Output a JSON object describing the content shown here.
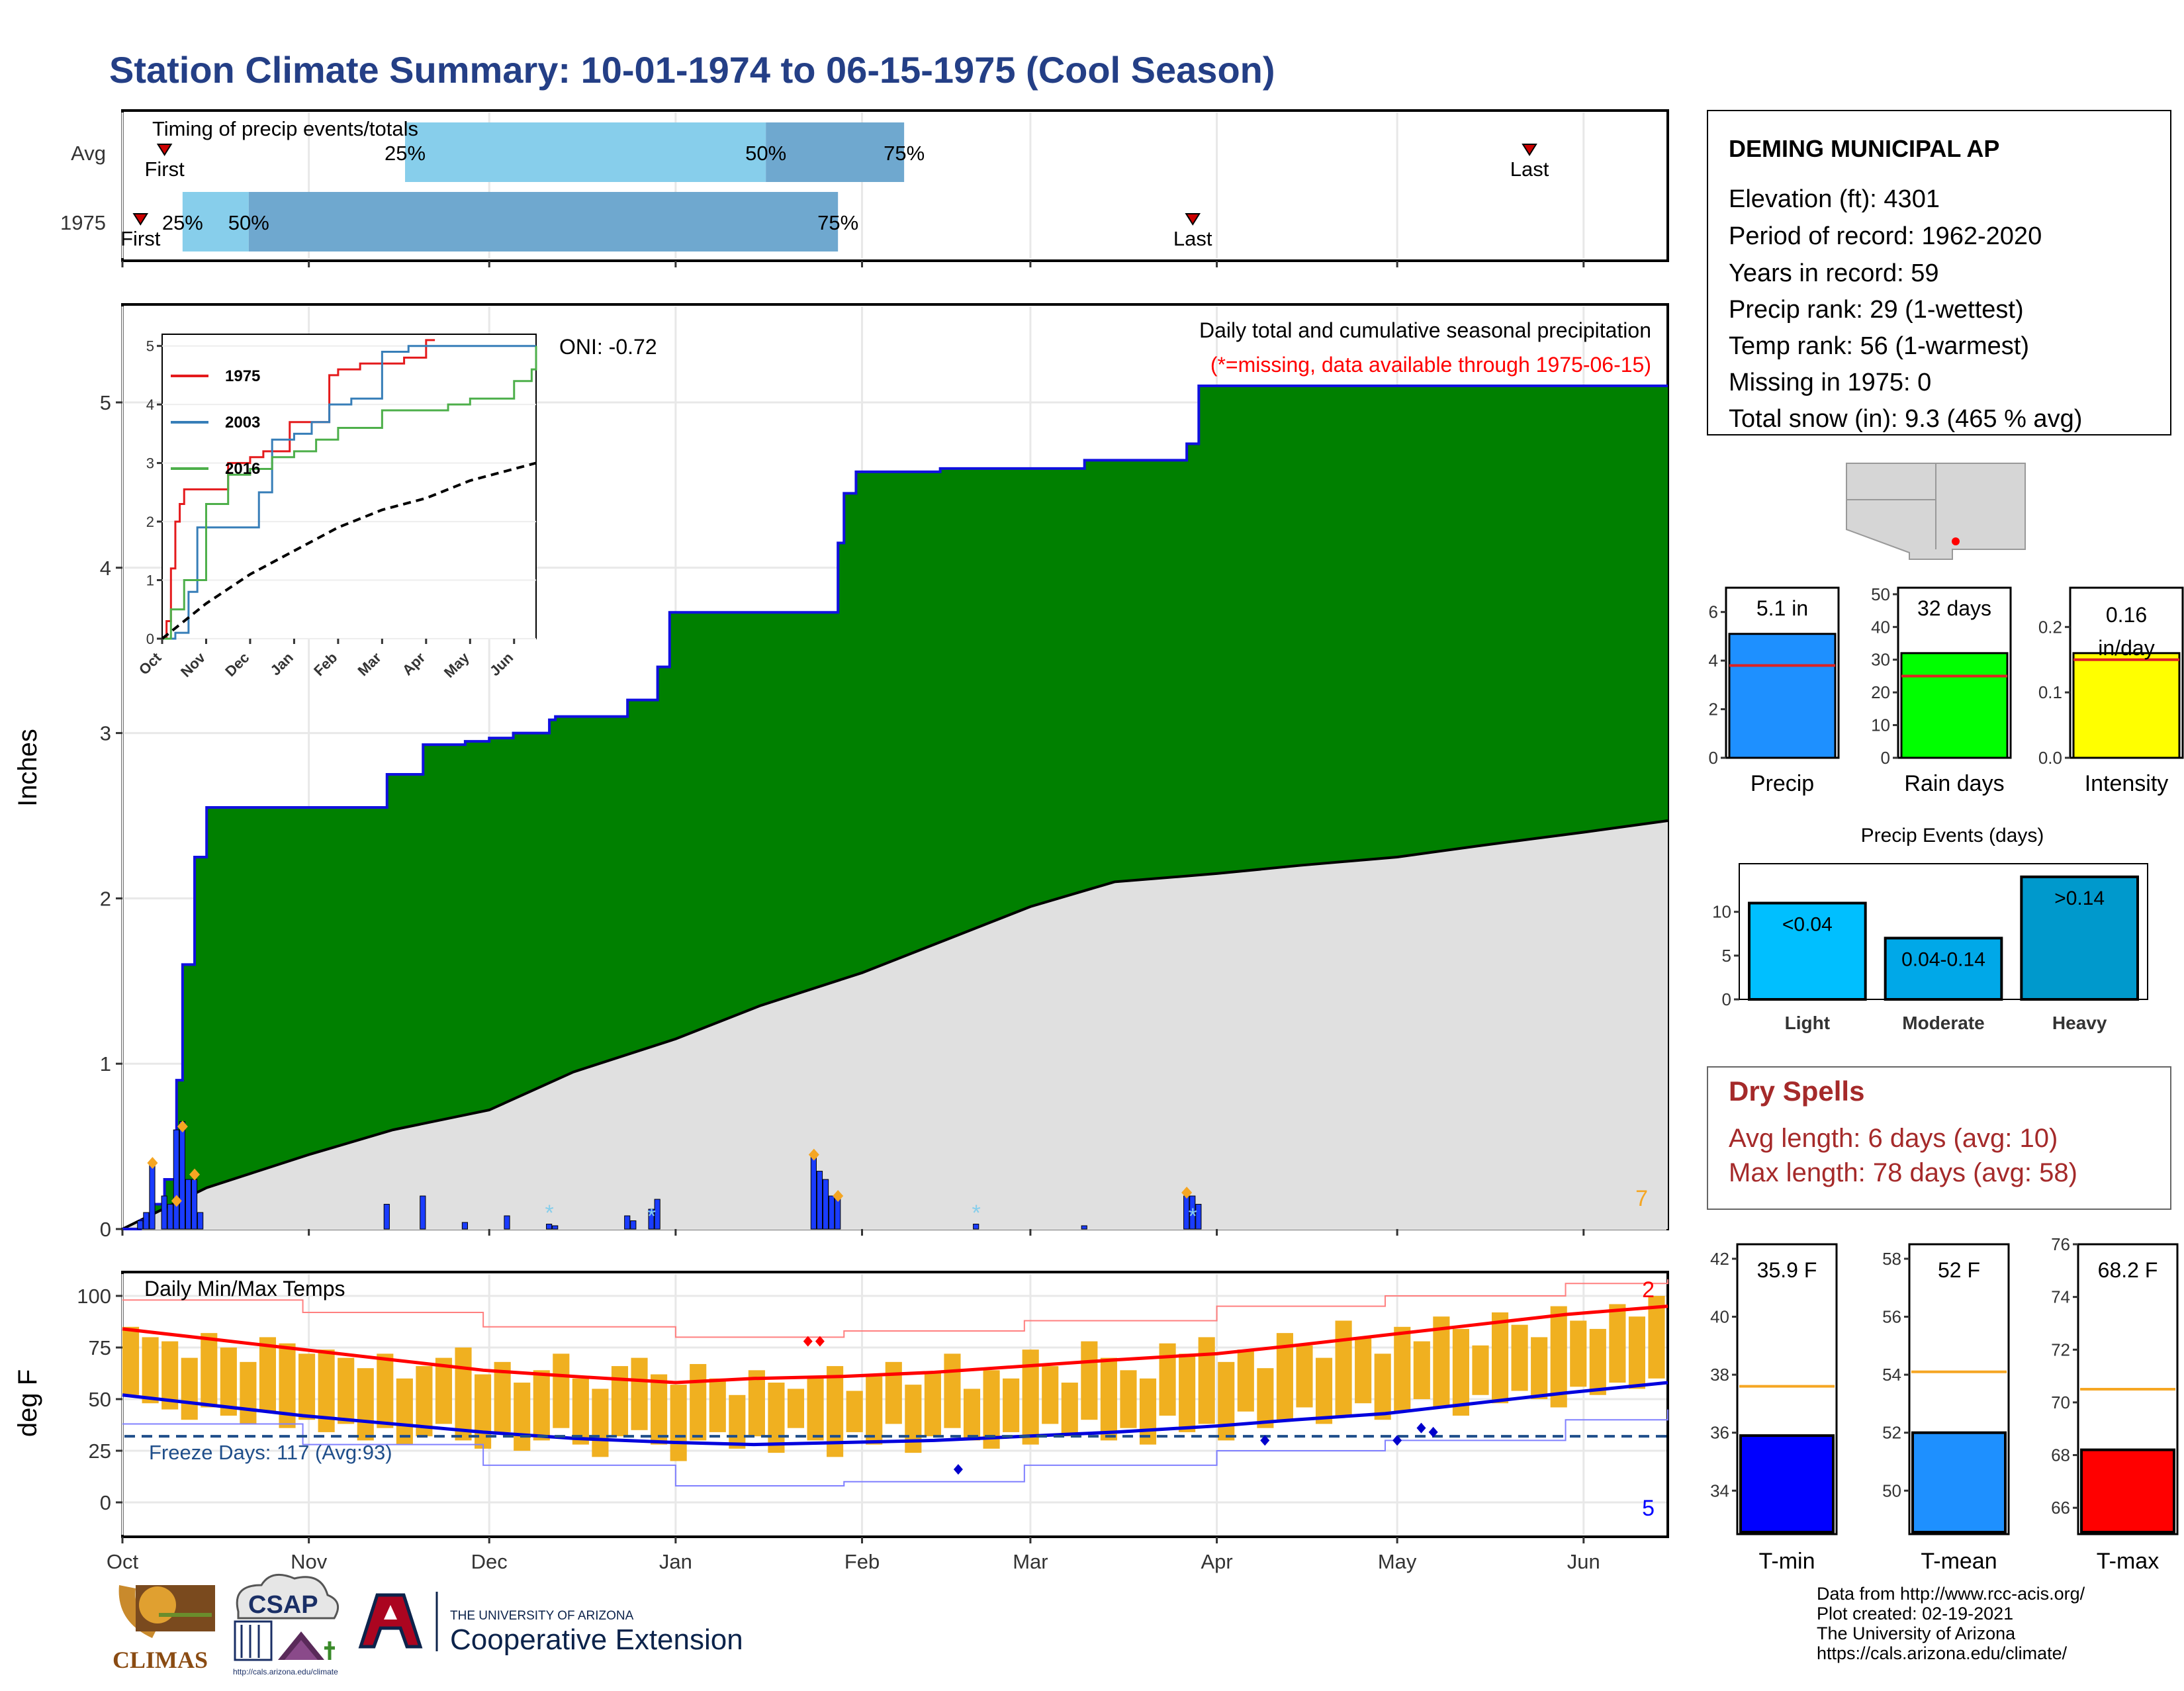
{
  "title": "Station Climate Summary: 10-01-1974 to 06-15-1975 (Cool Season)",
  "timing": {
    "heading": "Timing of precip events/totals",
    "rows": [
      {
        "label": "Avg",
        "first": "First",
        "last": "Last",
        "p25": "25%",
        "p50": "50%",
        "p75": "75%",
        "first_date": "1974-10-08",
        "last_date": "1975-05-23",
        "q25_date": "1974-11-17",
        "q50_date": "1975-01-16",
        "q75_date": "1975-02-08"
      },
      {
        "label": "1975",
        "first": "First",
        "last": "Last",
        "p25": "25%",
        "p50": "50%",
        "p75": "75%",
        "first_date": "1974-10-04",
        "last_date": "1975-03-28",
        "q25_date": "1974-10-11",
        "q50_date": "1974-10-22",
        "q75_date": "1975-01-28"
      }
    ],
    "colors": {
      "q1": "#87ceeb",
      "q2": "#6fa8cf"
    }
  },
  "station": {
    "name": "DEMING MUNICIPAL AP",
    "lines": [
      "Elevation (ft): 4301",
      "Period of record: 1962-2020",
      "Years in record: 59",
      "Precip rank: 29 (1-wettest)",
      "Temp rank: 56 (1-warmest)",
      "Missing in 1975: 0",
      "Total snow (in): 9.3 (465 % avg)"
    ]
  },
  "precip_panel": {
    "ylabel": "Inches",
    "oni": "ONI: -0.72",
    "heading": "Daily total and cumulative seasonal precipitation",
    "note": "(*=missing, data available through 1975-06-15)",
    "corner_count": "7",
    "month_labels": [
      "Oct",
      "Nov",
      "Dec",
      "Jan",
      "Feb",
      "Mar",
      "Apr",
      "May",
      "Jun"
    ],
    "colors": {
      "cum_fill": "#008000",
      "cum_line": "#1010e0",
      "avg_fill": "#e0e0e0",
      "daily": "#1a3cff",
      "marker": "#f5a623",
      "snow": "#87ceeb"
    }
  },
  "chart_data": [
    {
      "type": "area",
      "name": "cumulative-precip",
      "x_unit": "date",
      "ylim": [
        0,
        5.5
      ],
      "yticks": [
        0,
        1,
        2,
        3,
        4,
        5
      ],
      "xlim": [
        "1974-10-01",
        "1975-06-15"
      ],
      "series": [
        {
          "name": "1975",
          "x": [
            "1974-10-01",
            "1974-10-04",
            "1974-10-06",
            "1974-10-08",
            "1974-10-10",
            "1974-10-11",
            "1974-10-13",
            "1974-10-15",
            "1974-11-14",
            "1974-11-20",
            "1974-11-27",
            "1974-12-01",
            "1974-12-05",
            "1974-12-11",
            "1974-12-12",
            "1974-12-24",
            "1974-12-29",
            "1974-12-31",
            "1975-01-24",
            "1975-01-28",
            "1975-01-29",
            "1975-01-31",
            "1975-02-14",
            "1975-03-10",
            "1975-03-27",
            "1975-03-29",
            "1975-06-15"
          ],
          "y": [
            0,
            0.05,
            0.15,
            0.3,
            0.9,
            1.6,
            2.25,
            2.55,
            2.75,
            2.93,
            2.95,
            2.97,
            3.0,
            3.08,
            3.1,
            3.2,
            3.4,
            3.73,
            3.73,
            4.15,
            4.45,
            4.58,
            4.6,
            4.65,
            4.75,
            5.1,
            5.1
          ]
        },
        {
          "name": "Avg",
          "x": [
            "1974-10-01",
            "1974-10-15",
            "1974-11-01",
            "1974-11-15",
            "1974-12-01",
            "1974-12-15",
            "1975-01-01",
            "1975-01-15",
            "1975-02-01",
            "1975-02-15",
            "1975-03-01",
            "1975-03-15",
            "1975-04-01",
            "1975-04-15",
            "1975-05-01",
            "1975-05-15",
            "1975-06-01",
            "1975-06-15"
          ],
          "y": [
            0,
            0.25,
            0.45,
            0.6,
            0.72,
            0.95,
            1.15,
            1.35,
            1.55,
            1.75,
            1.95,
            2.1,
            2.15,
            2.2,
            2.25,
            2.32,
            2.4,
            2.47
          ]
        }
      ]
    },
    {
      "type": "bar",
      "name": "daily-precip",
      "x_unit": "date",
      "x": [
        "1974-10-04",
        "1974-10-05",
        "1974-10-06",
        "1974-10-08",
        "1974-10-09",
        "1974-10-10",
        "1974-10-11",
        "1974-10-12",
        "1974-10-13",
        "1974-10-14",
        "1974-11-14",
        "1974-11-20",
        "1974-11-27",
        "1974-12-04",
        "1974-12-11",
        "1974-12-12",
        "1974-12-24",
        "1974-12-25",
        "1974-12-28",
        "1974-12-29",
        "1975-01-24",
        "1975-01-25",
        "1975-01-26",
        "1975-01-27",
        "1975-01-28",
        "1975-02-20",
        "1975-03-10",
        "1975-03-27",
        "1975-03-28",
        "1975-03-29"
      ],
      "values": [
        0.05,
        0.1,
        0.4,
        0.2,
        0.15,
        0.6,
        0.65,
        0.3,
        0.3,
        0.1,
        0.15,
        0.2,
        0.04,
        0.08,
        0.03,
        0.02,
        0.08,
        0.05,
        0.12,
        0.18,
        0.45,
        0.35,
        0.3,
        0.2,
        0.2,
        0.03,
        0.02,
        0.2,
        0.2,
        0.15
      ],
      "markers": [
        {
          "x": "1974-10-06",
          "y": 0.4
        },
        {
          "x": "1974-10-11",
          "y": 0.62
        },
        {
          "x": "1974-10-10",
          "y": 0.17
        },
        {
          "x": "1974-10-13",
          "y": 0.33
        },
        {
          "x": "1975-01-24",
          "y": 0.45
        },
        {
          "x": "1975-01-28",
          "y": 0.2
        },
        {
          "x": "1975-03-27",
          "y": 0.22
        }
      ],
      "snow": [
        {
          "x": "1974-12-11",
          "y": 0.1
        },
        {
          "x": "1974-12-28",
          "y": 0.08
        },
        {
          "x": "1975-02-20",
          "y": 0.1
        },
        {
          "x": "1975-03-28",
          "y": 0.08
        }
      ]
    },
    {
      "type": "line",
      "name": "inset-cumulative",
      "xlabels": [
        "Oct",
        "Nov",
        "Dec",
        "Jan",
        "Feb",
        "Mar",
        "Apr",
        "May",
        "Jun"
      ],
      "ylim": [
        0,
        5.2
      ],
      "yticks": [
        0,
        1,
        2,
        3,
        4,
        5
      ],
      "x_unit": "months since Oct 1",
      "series": [
        {
          "name": "1975",
          "color": "#e41a1c",
          "x": [
            0,
            0.1,
            0.2,
            0.3,
            0.4,
            0.5,
            1.5,
            2.0,
            2.3,
            2.9,
            3.8,
            4.0,
            4.5,
            5.5,
            6.0,
            6.2
          ],
          "y": [
            0,
            0.3,
            1.2,
            2.0,
            2.3,
            2.55,
            3.0,
            3.1,
            3.2,
            3.7,
            4.5,
            4.6,
            4.7,
            4.8,
            5.1,
            5.1
          ]
        },
        {
          "name": "2003",
          "color": "#377eb8",
          "x": [
            0,
            0.3,
            0.6,
            0.8,
            2.0,
            2.2,
            2.5,
            3.0,
            3.4,
            3.8,
            4.3,
            5.0,
            5.6,
            8.5
          ],
          "y": [
            0,
            0.1,
            0.8,
            1.9,
            1.9,
            2.5,
            3.4,
            3.5,
            3.7,
            4.0,
            4.1,
            4.9,
            5.0,
            5.0
          ]
        },
        {
          "name": "2016",
          "color": "#4daf4a",
          "x": [
            0,
            0.2,
            0.5,
            1.0,
            1.5,
            2.0,
            2.5,
            3.0,
            3.5,
            4.0,
            5.0,
            6.5,
            7.0,
            8.0,
            8.4,
            8.5
          ],
          "y": [
            0,
            0.5,
            1.0,
            2.3,
            2.8,
            2.9,
            3.1,
            3.2,
            3.4,
            3.6,
            3.9,
            4.0,
            4.1,
            4.4,
            4.6,
            5.0
          ]
        },
        {
          "name": "Avg",
          "color": "#000000",
          "dashed": true,
          "x": [
            0,
            1,
            2,
            3,
            4,
            5,
            6,
            7,
            8,
            8.5
          ],
          "y": [
            0,
            0.6,
            1.1,
            1.5,
            1.9,
            2.2,
            2.4,
            2.7,
            2.9,
            3.0
          ]
        }
      ]
    },
    {
      "type": "bar",
      "name": "precip-summary",
      "categories": [
        "Precip",
        "Rain days",
        "Intensity"
      ],
      "values": [
        5.1,
        32,
        0.16
      ],
      "averages": [
        3.8,
        25,
        0.15
      ],
      "labels": [
        "5.1 in",
        "32 days",
        "0.16 in/day"
      ],
      "ylims": [
        [
          0,
          7
        ],
        [
          0,
          52
        ],
        [
          0,
          0.26
        ]
      ],
      "yticks": [
        [
          0,
          2,
          4,
          6
        ],
        [
          0,
          10,
          20,
          30,
          40,
          50
        ],
        [
          0.0,
          0.1,
          0.2
        ]
      ],
      "ytick_labels": [
        [
          "0",
          "2",
          "4",
          "6"
        ],
        [
          "0",
          "10",
          "20",
          "30",
          "40",
          "50"
        ],
        [
          "0.0",
          "0.1",
          "0.2"
        ]
      ],
      "colors": [
        "#1e90ff",
        "#00ff00",
        "#ffff00"
      ]
    },
    {
      "type": "bar",
      "name": "precip-events",
      "title": "Precip Events (days)",
      "categories": [
        "Light",
        "Moderate",
        "Heavy"
      ],
      "bar_labels": [
        "<0.04",
        "0.04-0.14",
        ">0.14"
      ],
      "values": [
        11,
        7,
        14
      ],
      "ylim": [
        0,
        15.5
      ],
      "yticks": [
        0,
        5,
        10
      ],
      "colors": [
        "#00bfff",
        "#00a8e8",
        "#0099cc"
      ]
    },
    {
      "type": "line",
      "name": "daily-temps",
      "heading": "Daily Min/Max Temps",
      "ylabel": "deg F",
      "ylim": [
        -12,
        108
      ],
      "yticks": [
        0,
        25,
        50,
        75,
        100
      ],
      "freeze_line": 32,
      "freeze_label": "Freeze Days: 117 (Avg:93)",
      "count_high": "2",
      "count_low": "5",
      "month_labels": [
        "Oct",
        "Nov",
        "Dec",
        "Jan",
        "Feb",
        "Mar",
        "Apr",
        "May",
        "Jun"
      ],
      "x_unit": "days since Oct 1",
      "avg_max": {
        "x": [
          0,
          15,
          30,
          45,
          60,
          75,
          92,
          105,
          120,
          135,
          150,
          165,
          182,
          195,
          210,
          225,
          240,
          257
        ],
        "y": [
          84,
          79,
          74,
          69,
          64,
          61,
          58,
          60,
          61,
          63,
          66,
          69,
          72,
          76,
          81,
          86,
          91,
          95
        ]
      },
      "avg_min": {
        "x": [
          0,
          15,
          30,
          45,
          60,
          75,
          92,
          105,
          120,
          135,
          150,
          165,
          182,
          195,
          210,
          225,
          240,
          257
        ],
        "y": [
          52,
          47,
          42,
          38,
          34,
          31,
          29,
          28,
          29,
          30,
          32,
          34,
          37,
          40,
          43,
          48,
          53,
          58
        ]
      },
      "rec_max": {
        "x": [
          0,
          30,
          60,
          92,
          120,
          150,
          182,
          210,
          240,
          257
        ],
        "y": [
          98,
          92,
          85,
          80,
          83,
          88,
          95,
          100,
          106,
          108
        ]
      },
      "rec_min": {
        "x": [
          0,
          30,
          60,
          92,
          120,
          150,
          182,
          210,
          240,
          257
        ],
        "y": [
          38,
          28,
          18,
          8,
          10,
          18,
          25,
          30,
          40,
          45
        ]
      },
      "obs_max": [
        85,
        80,
        78,
        70,
        82,
        75,
        68,
        80,
        77,
        72,
        74,
        70,
        65,
        72,
        60,
        66,
        70,
        75,
        62,
        68,
        58,
        64,
        72,
        60,
        55,
        66,
        70,
        62,
        57,
        67,
        60,
        52,
        64,
        58,
        55,
        60,
        66,
        54,
        61,
        68,
        57,
        63,
        72,
        55,
        64,
        60,
        74,
        66,
        58,
        78,
        70,
        64,
        60,
        77,
        72,
        80,
        68,
        74,
        65,
        82,
        76,
        70,
        88,
        80,
        72,
        85,
        78,
        90,
        84,
        76,
        92,
        86,
        80,
        95,
        88,
        84,
        96,
        90,
        100
      ],
      "obs_min": [
        52,
        48,
        45,
        40,
        46,
        42,
        38,
        44,
        36,
        40,
        34,
        38,
        30,
        36,
        28,
        32,
        38,
        30,
        26,
        34,
        25,
        30,
        36,
        28,
        22,
        32,
        35,
        28,
        20,
        30,
        34,
        26,
        32,
        24,
        36,
        30,
        22,
        34,
        28,
        38,
        24,
        32,
        36,
        30,
        26,
        34,
        28,
        38,
        32,
        40,
        30,
        36,
        28,
        42,
        34,
        38,
        30,
        44,
        36,
        40,
        46,
        38,
        42,
        48,
        40,
        44,
        50,
        46,
        42,
        52,
        48,
        54,
        50,
        46,
        56,
        52,
        58,
        55,
        60
      ],
      "extreme_markers": [
        {
          "day": 114,
          "y": 78,
          "color": "#ff0000"
        },
        {
          "day": 116,
          "y": 78,
          "color": "#ff0000"
        },
        {
          "day": 139,
          "y": 16,
          "color": "#0000cc"
        },
        {
          "day": 190,
          "y": 30,
          "color": "#0000cc"
        },
        {
          "day": 212,
          "y": 30,
          "color": "#0000cc"
        },
        {
          "day": 216,
          "y": 36,
          "color": "#0000cc"
        },
        {
          "day": 218,
          "y": 34,
          "color": "#0000cc"
        }
      ],
      "colors": {
        "bars": "#f0b020",
        "avg_max": "#ff0000",
        "avg_min": "#0000dd",
        "rec_max": "#ff8080",
        "rec_min": "#8080ff",
        "freeze": "#1f4e8a"
      }
    },
    {
      "type": "bar",
      "name": "temp-summary",
      "categories": [
        "T-min",
        "T-mean",
        "T-max"
      ],
      "values": [
        35.9,
        52,
        68.2
      ],
      "labels": [
        "35.9 F",
        "52 F",
        "68.2 F"
      ],
      "averages": [
        37.6,
        54.1,
        70.5
      ],
      "ylims": [
        [
          32.5,
          42.5
        ],
        [
          48.5,
          58.5
        ],
        [
          65,
          76
        ]
      ],
      "yticks": [
        [
          34,
          36,
          38,
          40,
          42
        ],
        [
          50,
          52,
          54,
          56,
          58
        ],
        [
          66,
          68,
          70,
          72,
          74,
          76
        ]
      ],
      "colors": [
        "#0000ff",
        "#1e90ff",
        "#ff0000"
      ],
      "avg_color": "#f5a623"
    }
  ],
  "dry_spells": {
    "title": "Dry Spells",
    "avg": "Avg length: 6 days (avg: 10)",
    "max": "Max length: 78 days (avg: 58)"
  },
  "map": {
    "dot_color": "#ff0000"
  },
  "logos": {
    "climas": "CLIMAS",
    "csap": "CSAP",
    "csap_url": "http://cals.arizona.edu/climate",
    "ua_small": "THE UNIVERSITY OF ARIZONA",
    "ua_large": "Cooperative Extension"
  },
  "credits": [
    "Data from http://www.rcc-acis.org/",
    "Plot created: 02-19-2021",
    "The University of Arizona",
    "https://cals.arizona.edu/climate/"
  ]
}
